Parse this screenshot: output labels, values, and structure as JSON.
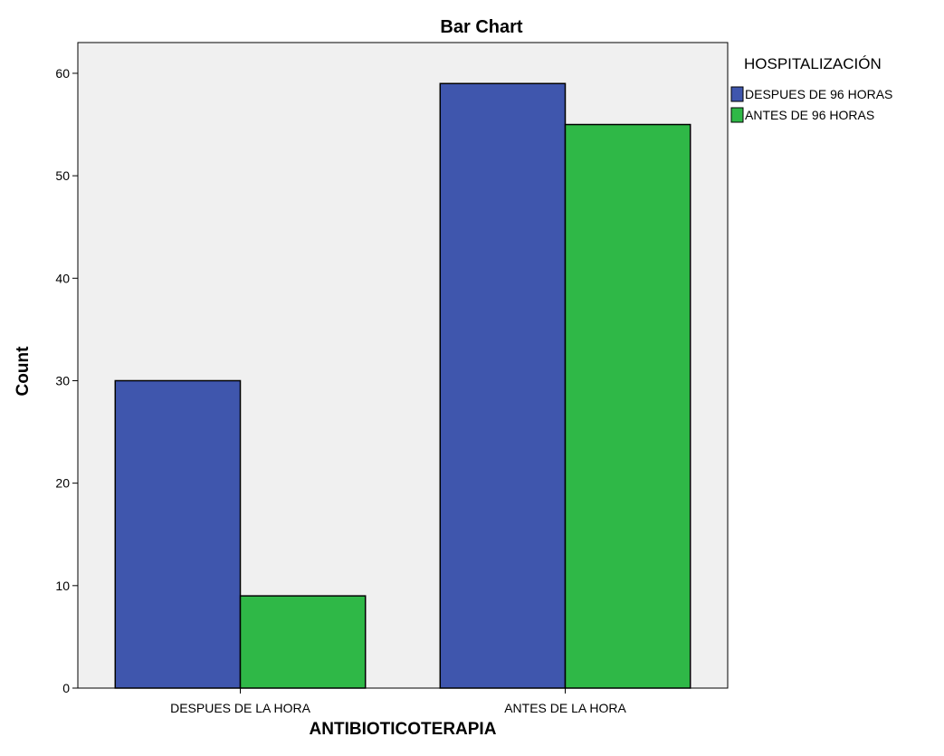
{
  "chart_data": {
    "type": "bar",
    "title": "Bar Chart",
    "xlabel": "ANTIBIOTICOTERAPIA",
    "ylabel": "Count",
    "categories": [
      "DESPUES DE LA HORA",
      "ANTES DE LA HORA"
    ],
    "series": [
      {
        "name": "DESPUES DE 96 HORAS",
        "values": [
          30,
          59
        ],
        "color": "#3f56ad"
      },
      {
        "name": "ANTES DE 96 HORAS",
        "values": [
          9,
          55
        ],
        "color": "#2fb847"
      }
    ],
    "ylim": [
      0,
      63
    ],
    "yticks": [
      0,
      10,
      20,
      30,
      40,
      50,
      60
    ],
    "legend": {
      "title": "HOSPITALIZACIÓN",
      "position": "top-right"
    },
    "grid": false,
    "plot_background": "#f0f0f0",
    "bar_outline": "#000000"
  }
}
